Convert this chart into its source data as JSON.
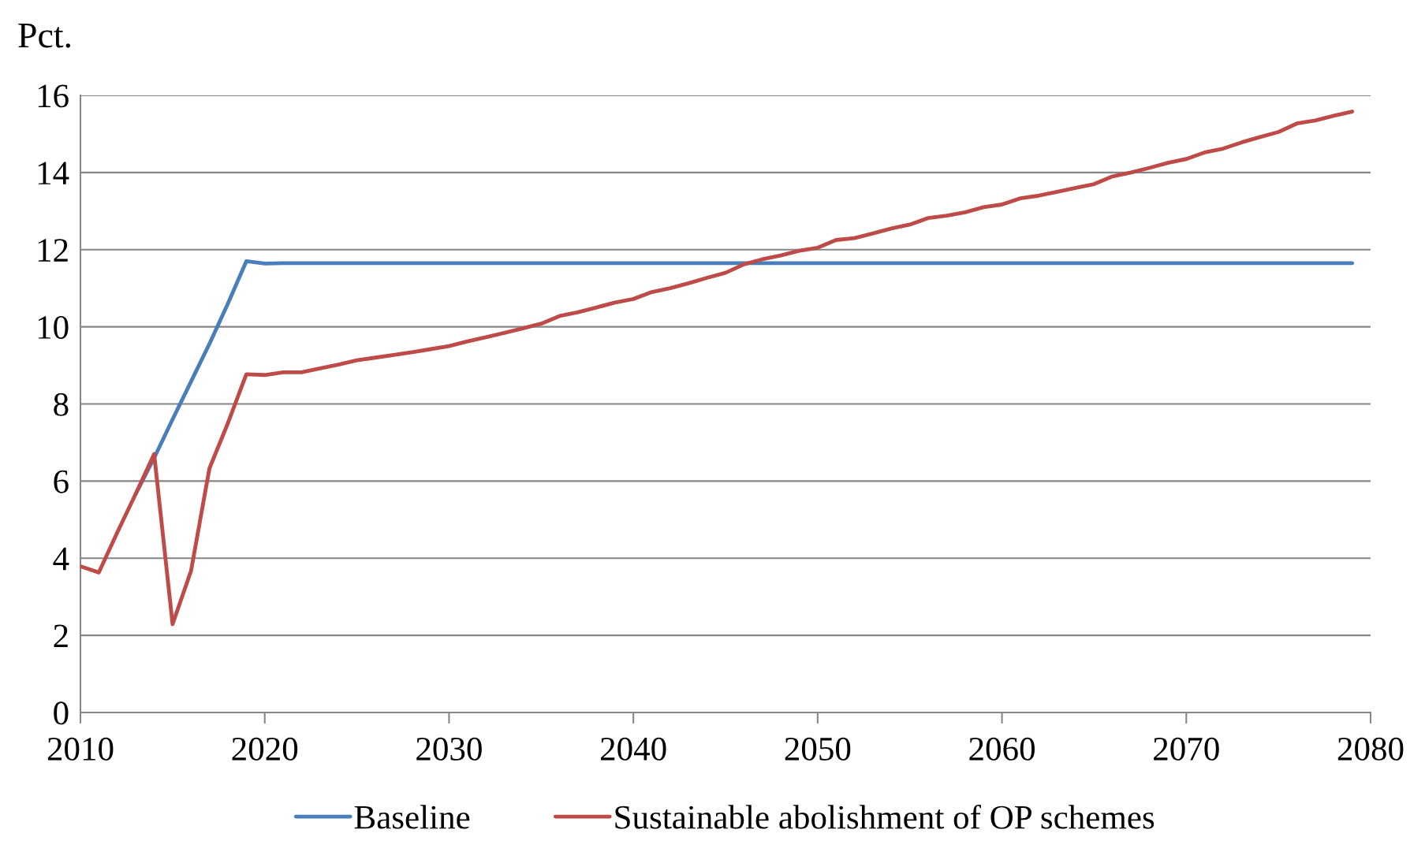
{
  "chart_data": {
    "type": "line",
    "ylabel": "Pct.",
    "x": [
      2010,
      2011,
      2012,
      2013,
      2014,
      2015,
      2016,
      2017,
      2018,
      2019,
      2020,
      2021,
      2022,
      2023,
      2024,
      2025,
      2026,
      2027,
      2028,
      2029,
      2030,
      2031,
      2032,
      2033,
      2034,
      2035,
      2036,
      2037,
      2038,
      2039,
      2040,
      2041,
      2042,
      2043,
      2044,
      2045,
      2046,
      2047,
      2048,
      2049,
      2050,
      2051,
      2052,
      2053,
      2054,
      2055,
      2056,
      2057,
      2058,
      2059,
      2060,
      2061,
      2062,
      2063,
      2064,
      2065,
      2066,
      2067,
      2068,
      2069,
      2070,
      2071,
      2072,
      2073,
      2074,
      2075,
      2076,
      2077,
      2078,
      2079
    ],
    "series": [
      {
        "name": "Baseline",
        "color": "#4a7ebb",
        "values": [
          null,
          null,
          null,
          5.67,
          6.6,
          7.6,
          8.58,
          9.56,
          10.6,
          11.7,
          11.64,
          11.65,
          11.65,
          11.65,
          11.65,
          11.65,
          11.65,
          11.65,
          11.65,
          11.65,
          11.65,
          11.65,
          11.65,
          11.65,
          11.65,
          11.65,
          11.65,
          11.65,
          11.65,
          11.65,
          11.65,
          11.65,
          11.65,
          11.65,
          11.65,
          11.65,
          11.65,
          11.65,
          11.65,
          11.65,
          11.65,
          11.65,
          11.65,
          11.65,
          11.65,
          11.65,
          11.65,
          11.65,
          11.65,
          11.65,
          11.65,
          11.65,
          11.65,
          11.65,
          11.65,
          11.65,
          11.65,
          11.65,
          11.65,
          11.65,
          11.65,
          11.65,
          11.65,
          11.65,
          11.65,
          11.65,
          11.65,
          11.65,
          11.65,
          11.65
        ]
      },
      {
        "name": "Sustainable abolishment of OP schemes",
        "color": "#be4b48",
        "values": [
          3.79,
          3.63,
          4.67,
          5.67,
          6.7,
          2.29,
          3.67,
          6.33,
          7.5,
          8.77,
          8.75,
          8.82,
          8.82,
          8.92,
          9.02,
          9.13,
          9.2,
          9.27,
          9.34,
          9.42,
          9.5,
          9.62,
          9.73,
          9.84,
          9.96,
          10.08,
          10.28,
          10.38,
          10.5,
          10.63,
          10.72,
          10.9,
          11.0,
          11.13,
          11.27,
          11.4,
          11.62,
          11.75,
          11.85,
          11.97,
          12.05,
          12.25,
          12.3,
          12.42,
          12.55,
          12.65,
          12.82,
          12.88,
          12.97,
          13.1,
          13.17,
          13.33,
          13.4,
          13.5,
          13.6,
          13.7,
          13.9,
          14.0,
          14.12,
          14.25,
          14.35,
          14.52,
          14.62,
          14.78,
          14.92,
          15.05,
          15.27,
          15.35,
          15.47,
          15.58
        ]
      }
    ],
    "xlim": [
      2010,
      2080
    ],
    "xticks": [
      2010,
      2020,
      2030,
      2040,
      2050,
      2060,
      2070,
      2080
    ],
    "ylim": [
      0,
      16
    ],
    "yticks": [
      0,
      2,
      4,
      6,
      8,
      10,
      12,
      14,
      16
    ],
    "grid": "y",
    "legend": "bottom",
    "marker": "none",
    "line_style": "solid"
  }
}
